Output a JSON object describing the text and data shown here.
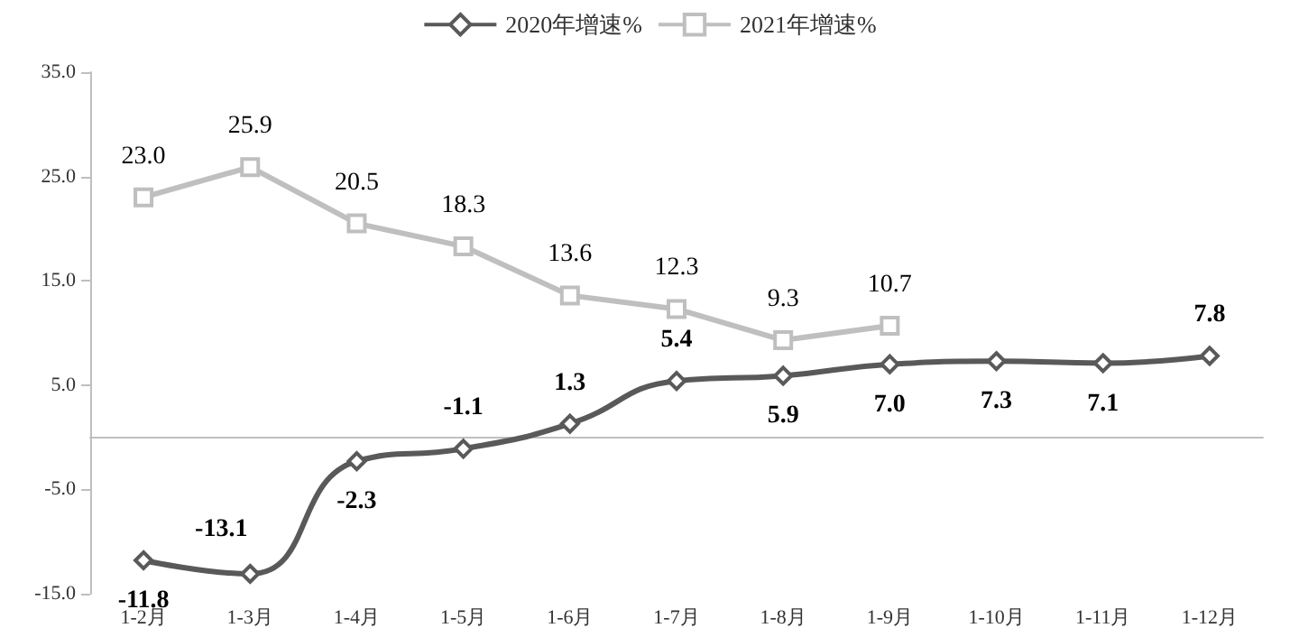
{
  "chart_data": {
    "type": "line",
    "categories": [
      "1-2月",
      "1-3月",
      "1-4月",
      "1-5月",
      "1-6月",
      "1-7月",
      "1-8月",
      "1-9月",
      "1-10月",
      "1-11月",
      "1-12月"
    ],
    "series": [
      {
        "name": "2020年增速%",
        "color": "#595959",
        "marker": "diamond",
        "values": [
          -11.8,
          -13.1,
          -2.3,
          -1.1,
          1.3,
          5.4,
          5.9,
          7.0,
          7.3,
          7.1,
          7.8
        ],
        "value_labels": [
          "-11.8",
          "-13.1",
          "-2.3",
          "-1.1",
          "1.3",
          "5.4",
          "5.9",
          "7.0",
          "7.3",
          "7.1",
          "7.8"
        ]
      },
      {
        "name": "2021年增速%",
        "color": "#bfbfbf",
        "marker": "square",
        "values": [
          23.0,
          25.9,
          20.5,
          18.3,
          13.6,
          12.3,
          9.3,
          10.7,
          null,
          null,
          null
        ],
        "value_labels": [
          "23.0",
          "25.9",
          "20.5",
          "18.3",
          "13.6",
          "12.3",
          "9.3",
          "10.7",
          null,
          null,
          null
        ]
      }
    ],
    "ylim": [
      -15,
      35
    ],
    "yticks": [
      {
        "value": -15,
        "label": "-15.0"
      },
      {
        "value": -5,
        "label": "-5.0"
      },
      {
        "value": 5,
        "label": "5.0"
      },
      {
        "value": 15,
        "label": "15.0"
      },
      {
        "value": 25,
        "label": "25.0"
      },
      {
        "value": 35,
        "label": "35.0"
      }
    ],
    "legend": "top",
    "grid": false
  }
}
